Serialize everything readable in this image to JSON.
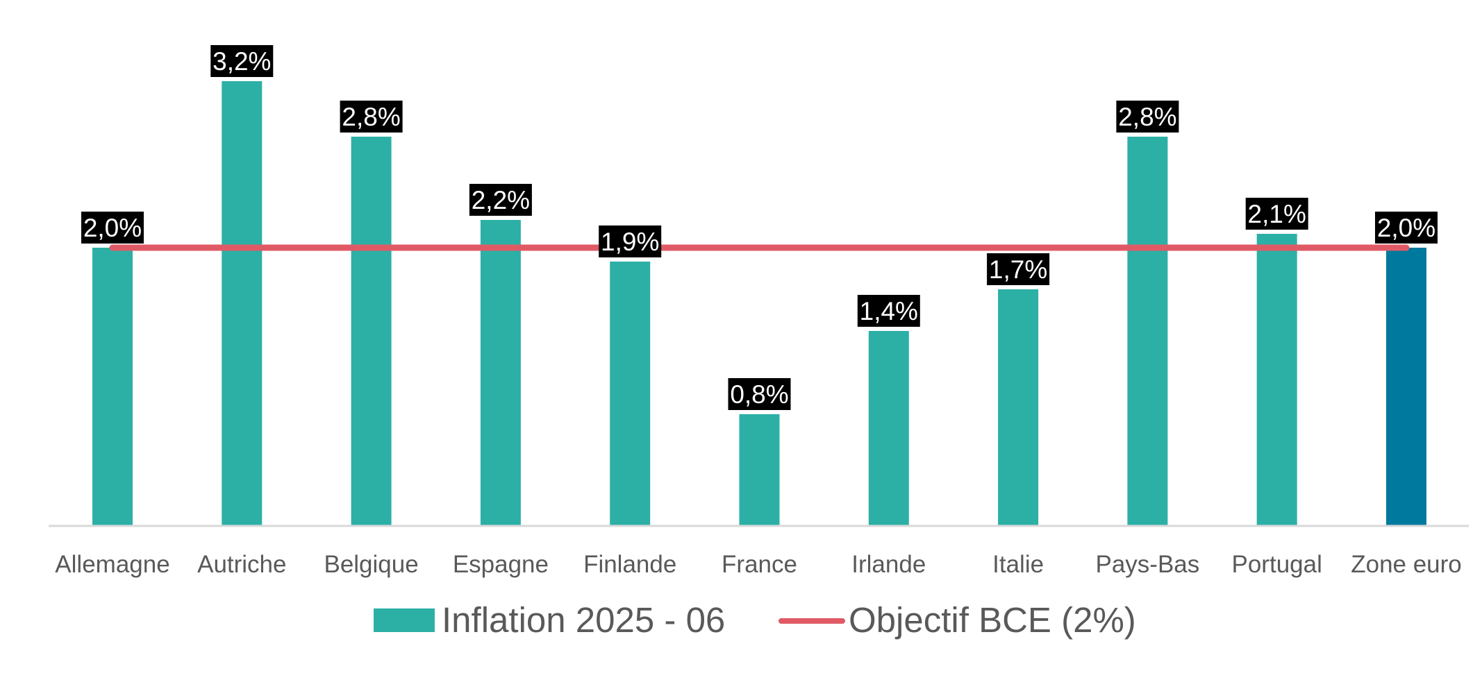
{
  "chart_data": {
    "type": "bar",
    "categories": [
      "Allemagne",
      "Autriche",
      "Belgique",
      "Espagne",
      "Finlande",
      "France",
      "Irlande",
      "Italie",
      "Pays-Bas",
      "Portugal",
      "Zone euro"
    ],
    "series": [
      {
        "name": "Inflation 2025 - 06",
        "values": [
          2.0,
          3.2,
          2.8,
          2.2,
          1.9,
          0.8,
          1.4,
          1.7,
          2.8,
          2.1,
          2.0
        ],
        "labels": [
          "2,0%",
          "3,2%",
          "2,8%",
          "2,2%",
          "1,9%",
          "0,8%",
          "1,4%",
          "1,7%",
          "2,8%",
          "2,1%",
          "2,0%"
        ],
        "color": "#2cb0a6",
        "highlight_category": "Zone euro",
        "highlight_color": "#00799e"
      },
      {
        "name": "Objectif BCE (2%)",
        "type": "line",
        "values": [
          2.0,
          2.0,
          2.0,
          2.0,
          2.0,
          2.0,
          2.0,
          2.0,
          2.0,
          2.0,
          2.0
        ],
        "color": "#e05a66"
      }
    ],
    "title": "",
    "xlabel": "",
    "ylabel": "",
    "ylim": [
      0,
      3.6
    ],
    "grid": false,
    "y_axis_visible": false,
    "data_label_style": "white text on black box",
    "legend_position": "bottom-center"
  },
  "legend": {
    "items": [
      {
        "label": "Inflation 2025 - 06",
        "symbol": "bar",
        "color": "#2cb0a6"
      },
      {
        "label": "Objectif BCE (2%)",
        "symbol": "line",
        "color": "#e05a66"
      }
    ]
  },
  "colors": {
    "axis_line": "#d9d9d9",
    "tick_text": "#595959",
    "label_box": "#000000",
    "label_text": "#ffffff"
  }
}
